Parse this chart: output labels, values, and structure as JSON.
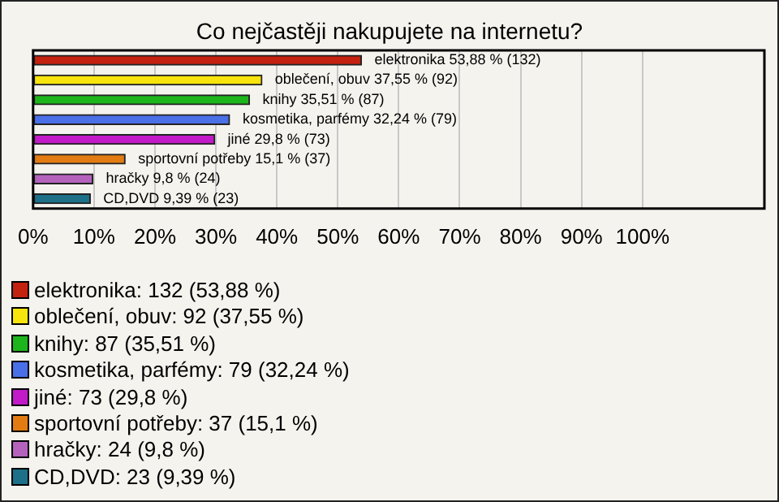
{
  "chart_data": {
    "type": "bar",
    "orientation": "horizontal",
    "title": "Co nejčastěji nakupujete na internetu?",
    "categories": [
      null,
      null,
      null,
      null,
      null,
      null,
      null,
      null
    ],
    "series": [
      {
        "name": "elektronika: 132 (53,88 %)",
        "color": "#c4210f",
        "values": [
          53.88,
          null,
          null,
          null,
          null,
          null,
          null,
          null
        ],
        "value_labels": [
          "elektronika 53,88 % (132)",
          null,
          null,
          null,
          null,
          null,
          null,
          null
        ]
      },
      {
        "name": "oblečení, obuv: 92 (37,55 %)",
        "color": "#f6e40c",
        "values": [
          null,
          37.55,
          null,
          null,
          null,
          null,
          null,
          null
        ],
        "value_labels": [
          null,
          "oblečení, obuv 37,55 % (92)",
          null,
          null,
          null,
          null,
          null,
          null
        ]
      },
      {
        "name": "knihy: 87 (35,51 %)",
        "color": "#1db51c",
        "values": [
          null,
          null,
          35.51,
          null,
          null,
          null,
          null,
          null
        ],
        "value_labels": [
          null,
          null,
          "knihy 35,51 % (87)",
          null,
          null,
          null,
          null,
          null
        ]
      },
      {
        "name": "kosmetika, parfémy: 79 (32,24 %)",
        "color": "#4a70e8",
        "values": [
          null,
          null,
          null,
          32.24,
          null,
          null,
          null,
          null
        ],
        "value_labels": [
          null,
          null,
          null,
          "kosmetika, parfémy 32,24 % (79)",
          null,
          null,
          null,
          null
        ]
      },
      {
        "name": "jiné: 73 (29,8 %)",
        "color": "#c21ac8",
        "values": [
          null,
          null,
          null,
          null,
          29.8,
          null,
          null,
          null
        ],
        "value_labels": [
          null,
          null,
          null,
          null,
          "jiné 29,8 % (73)",
          null,
          null,
          null
        ]
      },
      {
        "name": "sportovní potřeby: 37 (15,1 %)",
        "color": "#e27c12",
        "values": [
          null,
          null,
          null,
          null,
          null,
          15.1,
          null,
          null
        ],
        "value_labels": [
          null,
          null,
          null,
          null,
          null,
          "sportovní potřeby 15,1 % (37)",
          null,
          null
        ]
      },
      {
        "name": "hračky: 24 (9,8 %)",
        "color": "#b462bc",
        "values": [
          null,
          null,
          null,
          null,
          null,
          null,
          9.8,
          null
        ],
        "value_labels": [
          null,
          null,
          null,
          null,
          null,
          null,
          "hračky 9,8 % (24)",
          null
        ]
      },
      {
        "name": "CD,DVD: 23 (9,39 %)",
        "color": "#1c7088",
        "values": [
          null,
          null,
          null,
          null,
          null,
          null,
          null,
          9.39
        ],
        "value_labels": [
          null,
          null,
          null,
          null,
          null,
          null,
          null,
          "CD,DVD 9,39 % (23)"
        ]
      }
    ],
    "xlim": [
      0,
      120
    ],
    "xticks": [
      {
        "value": 0,
        "label": "0%"
      },
      {
        "value": 10,
        "label": "10%"
      },
      {
        "value": 20,
        "label": "20%"
      },
      {
        "value": 30,
        "label": "30%"
      },
      {
        "value": 40,
        "label": "40%"
      },
      {
        "value": 50,
        "label": "50%"
      },
      {
        "value": 60,
        "label": "60%"
      },
      {
        "value": 70,
        "label": "70%"
      },
      {
        "value": 80,
        "label": "80%"
      },
      {
        "value": 90,
        "label": "90%"
      },
      {
        "value": 100,
        "label": "100%"
      }
    ],
    "grid": "x",
    "legend": "bottom",
    "tick_labels": "x"
  }
}
